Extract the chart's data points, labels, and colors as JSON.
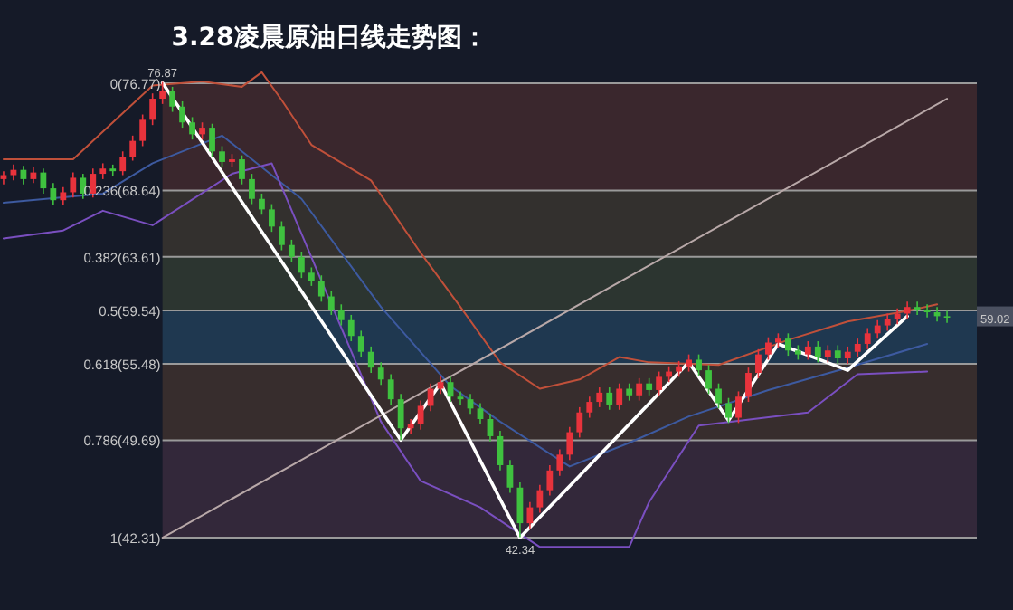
{
  "chart_data": {
    "type": "candlestick",
    "title": "3.28凌晨原油日线走势图：",
    "categories": [
      null,
      null,
      null,
      null,
      null,
      null,
      null,
      null,
      null,
      null,
      null,
      null,
      null,
      null,
      null,
      null,
      null,
      null,
      null,
      null,
      null,
      null,
      null,
      null,
      null,
      null,
      null,
      null,
      null,
      null,
      null,
      null,
      null,
      null,
      null,
      null,
      null,
      null,
      null,
      null,
      null,
      null,
      null,
      null,
      null,
      null,
      null,
      null,
      null,
      null,
      null,
      null,
      null,
      null,
      null,
      null,
      null,
      null,
      null,
      null,
      null,
      null,
      null,
      null,
      null,
      null,
      null,
      null,
      null,
      null,
      null,
      null,
      null,
      null,
      null,
      null,
      null,
      null,
      null,
      null,
      null,
      null,
      null,
      null,
      null,
      null,
      null,
      null,
      null,
      null,
      null,
      null,
      null,
      null,
      null,
      null
    ],
    "ohlc": [
      [
        69.5,
        70.1,
        69.1,
        69.8
      ],
      [
        69.8,
        70.6,
        69.4,
        70.2
      ],
      [
        70.2,
        70.5,
        69.1,
        69.5
      ],
      [
        69.5,
        70.4,
        69.2,
        70.0
      ],
      [
        70.0,
        70.3,
        68.4,
        68.8
      ],
      [
        68.8,
        69.2,
        67.5,
        67.9
      ],
      [
        67.9,
        68.9,
        67.5,
        68.5
      ],
      [
        68.5,
        70.0,
        68.1,
        69.6
      ],
      [
        69.6,
        69.9,
        68.0,
        68.4
      ],
      [
        68.4,
        70.3,
        68.1,
        69.9
      ],
      [
        69.9,
        70.7,
        69.5,
        70.3
      ],
      [
        70.3,
        70.6,
        69.7,
        70.1
      ],
      [
        70.1,
        71.6,
        69.8,
        71.2
      ],
      [
        71.2,
        72.8,
        70.9,
        72.4
      ],
      [
        72.4,
        74.4,
        72.0,
        74.0
      ],
      [
        74.0,
        76.0,
        73.6,
        75.6
      ],
      [
        75.6,
        76.87,
        75.2,
        76.2
      ],
      [
        76.2,
        76.5,
        74.6,
        75.0
      ],
      [
        75.0,
        75.4,
        73.4,
        73.8
      ],
      [
        73.8,
        74.2,
        72.5,
        72.9
      ],
      [
        72.9,
        73.8,
        72.5,
        73.4
      ],
      [
        73.4,
        73.7,
        71.2,
        71.6
      ],
      [
        71.6,
        72.0,
        70.4,
        70.8
      ],
      [
        70.8,
        71.4,
        70.4,
        71.0
      ],
      [
        71.0,
        71.3,
        69.1,
        69.5
      ],
      [
        69.5,
        69.9,
        67.6,
        68.0
      ],
      [
        68.0,
        68.4,
        66.8,
        67.2
      ],
      [
        67.2,
        67.6,
        65.5,
        65.9
      ],
      [
        65.9,
        66.3,
        64.1,
        64.5
      ],
      [
        64.5,
        64.9,
        63.2,
        63.6
      ],
      [
        63.6,
        64.0,
        62.0,
        62.4
      ],
      [
        62.4,
        62.8,
        61.4,
        61.8
      ],
      [
        61.8,
        62.2,
        60.2,
        60.6
      ],
      [
        60.6,
        61.0,
        59.2,
        59.6
      ],
      [
        59.6,
        60.0,
        58.4,
        58.8
      ],
      [
        58.8,
        59.2,
        57.2,
        57.6
      ],
      [
        57.6,
        58.0,
        56.0,
        56.4
      ],
      [
        56.4,
        56.8,
        54.8,
        55.2
      ],
      [
        55.2,
        55.6,
        53.9,
        54.3
      ],
      [
        54.3,
        54.7,
        52.4,
        52.8
      ],
      [
        52.8,
        53.2,
        49.7,
        50.6
      ],
      [
        50.6,
        51.3,
        50.2,
        50.9
      ],
      [
        50.9,
        52.7,
        50.5,
        52.3
      ],
      [
        52.3,
        54.0,
        51.9,
        53.6
      ],
      [
        53.6,
        54.6,
        53.2,
        54.1
      ],
      [
        54.1,
        54.5,
        52.6,
        53.0
      ],
      [
        53.0,
        53.4,
        52.4,
        52.8
      ],
      [
        52.8,
        53.2,
        51.7,
        52.1
      ],
      [
        52.1,
        52.5,
        50.9,
        51.3
      ],
      [
        51.3,
        51.7,
        49.6,
        50.0
      ],
      [
        50.0,
        50.4,
        47.4,
        47.8
      ],
      [
        47.8,
        48.2,
        45.7,
        46.1
      ],
      [
        46.1,
        46.5,
        42.34,
        43.4
      ],
      [
        43.4,
        45.0,
        43.0,
        44.6
      ],
      [
        44.6,
        46.3,
        44.2,
        45.9
      ],
      [
        45.9,
        47.8,
        45.5,
        47.4
      ],
      [
        47.4,
        49.0,
        47.0,
        48.6
      ],
      [
        48.6,
        50.7,
        48.2,
        50.3
      ],
      [
        50.3,
        52.2,
        49.9,
        51.8
      ],
      [
        51.8,
        53.0,
        51.4,
        52.6
      ],
      [
        52.6,
        53.7,
        52.2,
        53.3
      ],
      [
        53.3,
        53.7,
        52.0,
        52.4
      ],
      [
        52.4,
        54.0,
        52.0,
        53.6
      ],
      [
        53.6,
        54.0,
        52.7,
        53.1
      ],
      [
        53.1,
        54.4,
        52.7,
        54.0
      ],
      [
        54.0,
        54.4,
        53.1,
        53.5
      ],
      [
        53.5,
        54.9,
        53.1,
        54.5
      ],
      [
        54.5,
        55.3,
        54.1,
        54.9
      ],
      [
        54.9,
        55.7,
        54.5,
        55.3
      ],
      [
        55.3,
        56.2,
        54.9,
        55.8
      ],
      [
        55.8,
        56.2,
        54.6,
        55.0
      ],
      [
        55.0,
        55.4,
        53.2,
        53.6
      ],
      [
        53.6,
        54.0,
        52.1,
        52.5
      ],
      [
        52.5,
        52.9,
        51.0,
        51.4
      ],
      [
        51.4,
        53.4,
        51.0,
        53.0
      ],
      [
        53.0,
        55.2,
        52.6,
        54.8
      ],
      [
        54.8,
        56.6,
        54.4,
        56.2
      ],
      [
        56.2,
        57.5,
        55.8,
        57.1
      ],
      [
        57.1,
        57.8,
        56.7,
        57.4
      ],
      [
        57.4,
        57.8,
        56.1,
        56.5
      ],
      [
        56.5,
        56.9,
        55.8,
        56.2
      ],
      [
        56.2,
        57.2,
        55.8,
        56.8
      ],
      [
        56.8,
        57.2,
        55.6,
        56.0
      ],
      [
        56.0,
        56.9,
        55.6,
        56.5
      ],
      [
        56.5,
        56.9,
        55.5,
        55.9
      ],
      [
        55.9,
        56.8,
        55.5,
        56.4
      ],
      [
        56.4,
        57.4,
        56.0,
        57.0
      ],
      [
        57.0,
        58.2,
        56.6,
        57.8
      ],
      [
        57.8,
        58.8,
        57.4,
        58.4
      ],
      [
        58.4,
        59.3,
        58.0,
        58.9
      ],
      [
        58.9,
        59.7,
        58.5,
        59.3
      ],
      [
        59.3,
        60.2,
        58.9,
        59.8
      ],
      [
        59.8,
        60.2,
        59.2,
        59.6
      ],
      [
        59.6,
        60.0,
        59.0,
        59.4
      ],
      [
        59.4,
        59.8,
        58.7,
        59.1
      ],
      [
        59.1,
        59.5,
        58.6,
        59.02
      ]
    ],
    "colors": [
      "#e8333c",
      "#e8333c",
      "#3fc13f",
      "#e8333c",
      "#3fc13f",
      "#3fc13f",
      "#e8333c",
      "#e8333c",
      "#3fc13f",
      "#e8333c",
      "#e8333c",
      "#3fc13f",
      "#e8333c",
      "#e8333c",
      "#e8333c",
      "#e8333c",
      "#e8333c",
      "#3fc13f",
      "#3fc13f",
      "#3fc13f",
      "#e8333c",
      "#3fc13f",
      "#3fc13f",
      "#e8333c",
      "#3fc13f",
      "#3fc13f",
      "#3fc13f",
      "#3fc13f",
      "#3fc13f",
      "#3fc13f",
      "#3fc13f",
      "#3fc13f",
      "#3fc13f",
      "#3fc13f",
      "#3fc13f",
      "#3fc13f",
      "#3fc13f",
      "#3fc13f",
      "#3fc13f",
      "#3fc13f",
      "#3fc13f",
      "#e8333c",
      "#e8333c",
      "#e8333c",
      "#e8333c",
      "#3fc13f",
      "#3fc13f",
      "#3fc13f",
      "#3fc13f",
      "#3fc13f",
      "#3fc13f",
      "#3fc13f",
      "#3fc13f",
      "#e8333c",
      "#e8333c",
      "#e8333c",
      "#e8333c",
      "#e8333c",
      "#e8333c",
      "#e8333c",
      "#e8333c",
      "#3fc13f",
      "#e8333c",
      "#3fc13f",
      "#e8333c",
      "#3fc13f",
      "#e8333c",
      "#e8333c",
      "#e8333c",
      "#e8333c",
      "#3fc13f",
      "#3fc13f",
      "#3fc13f",
      "#3fc13f",
      "#e8333c",
      "#e8333c",
      "#e8333c",
      "#e8333c",
      "#e8333c",
      "#3fc13f",
      "#3fc13f",
      "#e8333c",
      "#3fc13f",
      "#e8333c",
      "#3fc13f",
      "#e8333c",
      "#e8333c",
      "#e8333c",
      "#e8333c",
      "#e8333c",
      "#e8333c",
      "#e8333c",
      "#3fc13f",
      "#3fc13f",
      "#3fc13f",
      "#3fc13f"
    ],
    "series": [
      {
        "type": "line",
        "color": "#c0503a",
        "values": [
          71.0,
          null,
          null,
          null,
          null,
          null,
          null,
          71.0,
          null,
          null,
          null,
          null,
          null,
          null,
          null,
          76.6,
          null,
          null,
          null,
          null,
          76.9,
          null,
          null,
          null,
          76.5,
          null,
          77.6,
          null,
          75.5,
          null,
          null,
          72.1,
          null,
          null,
          null,
          null,
          null,
          69.4,
          null,
          null,
          null,
          null,
          63.9,
          null,
          null,
          null,
          59.8,
          null,
          null,
          null,
          55.6,
          null,
          null,
          null,
          53.6,
          null,
          null,
          null,
          54.3,
          null,
          null,
          null,
          56.0,
          null,
          null,
          55.6,
          null,
          null,
          null,
          null,
          null,
          null,
          55.4,
          null,
          null,
          null,
          null,
          null,
          null,
          57.3,
          null,
          null,
          null,
          null,
          null,
          58.7,
          null,
          null,
          null,
          null,
          null,
          59.5,
          null,
          null,
          60.0,
          null
        ]
      },
      {
        "type": "line",
        "color": "#3d5aa0",
        "values": [
          67.7,
          null,
          null,
          null,
          null,
          null,
          null,
          null,
          null,
          null,
          68.4,
          null,
          null,
          null,
          null,
          70.7,
          null,
          null,
          null,
          null,
          null,
          null,
          72.8,
          null,
          null,
          null,
          null,
          null,
          null,
          null,
          68.0,
          null,
          null,
          null,
          null,
          null,
          null,
          null,
          59.8,
          null,
          null,
          null,
          null,
          null,
          null,
          53.8,
          null,
          null,
          null,
          null,
          51.1,
          null,
          null,
          null,
          null,
          null,
          null,
          47.7,
          null,
          null,
          null,
          null,
          null,
          49.5,
          null,
          null,
          null,
          null,
          null,
          51.5,
          null,
          null,
          null,
          null,
          null,
          null,
          null,
          53.5,
          null,
          null,
          null,
          null,
          null,
          null,
          null,
          55.2,
          null,
          null,
          null,
          null,
          null,
          null,
          null,
          57.0,
          null,
          null
        ]
      },
      {
        "type": "line",
        "color": "#7a4fc0",
        "values": [
          65.0,
          null,
          null,
          null,
          null,
          null,
          65.6,
          null,
          null,
          null,
          67.1,
          null,
          null,
          null,
          null,
          66.0,
          null,
          null,
          null,
          null,
          null,
          null,
          null,
          69.9,
          null,
          null,
          null,
          70.7,
          null,
          null,
          null,
          null,
          null,
          null,
          null,
          null,
          null,
          null,
          51.1,
          null,
          null,
          null,
          46.6,
          null,
          null,
          null,
          null,
          null,
          44.6,
          null,
          null,
          null,
          null,
          null,
          41.6,
          null,
          null,
          null,
          null,
          null,
          null,
          null,
          null,
          41.6,
          null,
          45.0,
          null,
          null,
          null,
          null,
          50.8,
          null,
          null,
          null,
          null,
          null,
          null,
          null,
          null,
          null,
          null,
          51.8,
          null,
          null,
          null,
          null,
          54.7,
          null,
          null,
          null,
          null,
          null,
          null,
          54.9,
          null,
          null
        ]
      },
      {
        "type": "line",
        "color": "#b8a8a8",
        "values": [
          null,
          null,
          null,
          null,
          null,
          null,
          null,
          null,
          null,
          null,
          null,
          null,
          null,
          null,
          null,
          null,
          42.3,
          null,
          null,
          null,
          null,
          null,
          null,
          null,
          null,
          null,
          null,
          null,
          null,
          null,
          null,
          null,
          null,
          null,
          null,
          null,
          null,
          null,
          null,
          null,
          null,
          null,
          null,
          null,
          null,
          null,
          null,
          null,
          null,
          null,
          null,
          null,
          null,
          null,
          null,
          null,
          null,
          null,
          null,
          null,
          null,
          null,
          null,
          null,
          null,
          null,
          null,
          null,
          null,
          null,
          null,
          null,
          null,
          null,
          null,
          null,
          null,
          null,
          null,
          null,
          null,
          null,
          null,
          null,
          null,
          null,
          null,
          null,
          null,
          null,
          null,
          null,
          null,
          null,
          null,
          75.6
        ]
      },
      {
        "type": "line",
        "color": "#ffffff",
        "values": [
          null,
          null,
          null,
          null,
          null,
          null,
          null,
          null,
          null,
          null,
          null,
          null,
          null,
          null,
          null,
          null,
          76.8,
          null,
          null,
          null,
          null,
          null,
          null,
          null,
          null,
          null,
          null,
          null,
          null,
          null,
          null,
          null,
          null,
          null,
          null,
          null,
          null,
          null,
          null,
          null,
          49.7,
          null,
          null,
          null,
          54.0,
          null,
          null,
          null,
          null,
          null,
          null,
          null,
          42.3,
          null,
          null,
          null,
          null,
          null,
          null,
          null,
          null,
          null,
          null,
          null,
          null,
          null,
          null,
          null,
          null,
          55.6,
          null,
          null,
          null,
          51.2,
          null,
          null,
          null,
          null,
          57.0,
          null,
          null,
          null,
          null,
          null,
          null,
          55.0,
          null,
          null,
          null,
          null,
          null,
          59.1,
          null,
          null,
          null,
          null
        ]
      }
    ],
    "ref_lines": [
      {
        "axis": "y",
        "value": 76.77,
        "label": "0(76.77)",
        "color": "#9a9a9a"
      },
      {
        "axis": "y",
        "value": 68.64,
        "label": "0.236(68.64)",
        "color": "#9a9a9a"
      },
      {
        "axis": "y",
        "value": 63.61,
        "label": "0.382(63.61)",
        "color": "#9a9a9a"
      },
      {
        "axis": "y",
        "value": 59.54,
        "label": "0.5(59.54)",
        "color": "#9a9a9a"
      },
      {
        "axis": "y",
        "value": 55.48,
        "label": "0.618(55.48)",
        "color": "#9a9a9a"
      },
      {
        "axis": "y",
        "value": 49.69,
        "label": "0.786(49.69)",
        "color": "#9a9a9a"
      },
      {
        "axis": "y",
        "value": 42.31,
        "label": "1(42.31)",
        "color": "#9a9a9a"
      }
    ],
    "bands": [
      {
        "axis": "y",
        "from": 68.64,
        "to": 76.77,
        "color": "#3a272d"
      },
      {
        "axis": "y",
        "from": 63.61,
        "to": 68.64,
        "color": "#33302e"
      },
      {
        "axis": "y",
        "from": 59.54,
        "to": 63.61,
        "color": "#2c3530"
      },
      {
        "axis": "y",
        "from": 55.48,
        "to": 59.54,
        "color": "#1f3850"
      },
      {
        "axis": "y",
        "from": 49.69,
        "to": 55.48,
        "color": "#372d2d"
      },
      {
        "axis": "y",
        "from": 42.31,
        "to": 49.69,
        "color": "#33283a"
      }
    ],
    "annotations": [
      {
        "text": "76.87",
        "y": 76.87
      },
      {
        "text": "42.34",
        "y": 42.34
      },
      "59.02"
    ]
  }
}
